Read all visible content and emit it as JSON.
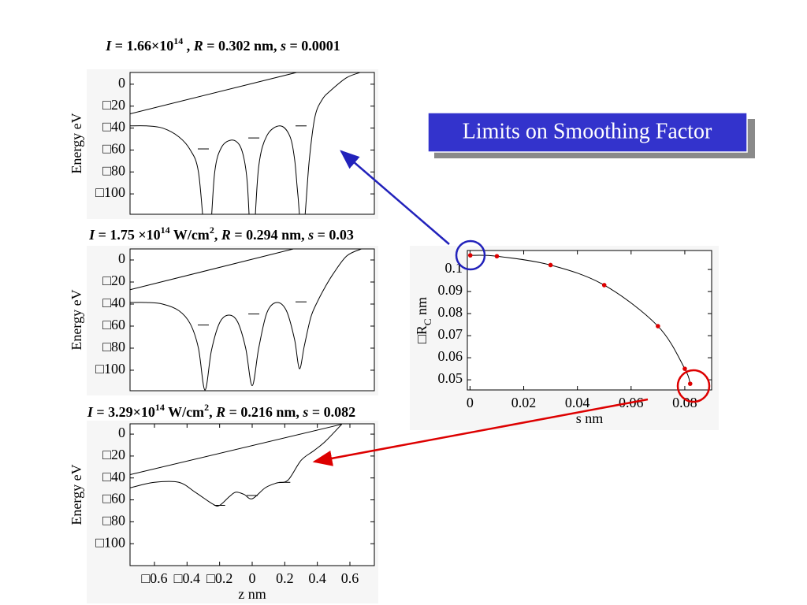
{
  "callout": "Limits on Smoothing Factor",
  "chart_data": [
    {
      "type": "line",
      "title": [
        {
          "text": "I",
          "italic": true
        },
        {
          "text": " = 1.66×10"
        },
        {
          "text": "14",
          "sup": true
        },
        {
          "text": " , "
        },
        {
          "text": "R",
          "italic": true
        },
        {
          "text": " = 0.302 nm, "
        },
        {
          "text": "s",
          "italic": true
        },
        {
          "text": " = 0.0001"
        }
      ],
      "ylabel": "Energy  eV",
      "xlim": [
        -0.75,
        0.75
      ],
      "ylim": [
        -118.6,
        10.7
      ],
      "yticks": [
        0,
        {
          "value": -20,
          "label": "□20"
        },
        {
          "value": -40,
          "label": "□40"
        },
        {
          "value": -60,
          "label": "□60"
        },
        {
          "value": -80,
          "label": "□80"
        },
        {
          "value": -100,
          "label": "□100"
        }
      ],
      "series": [
        {
          "color": "#000000",
          "x": [
            -0.75,
            0.28
          ],
          "values": [
            -27,
            11
          ]
        },
        {
          "color": "#000000",
          "x": [
            -0.75,
            -0.65,
            -0.55,
            -0.45,
            -0.38,
            -0.33,
            -0.29,
            -0.26,
            -0.23,
            -0.19,
            -0.13,
            -0.08,
            -0.05,
            -0.03,
            -0.01,
            0.01,
            0.04,
            0.09,
            0.17,
            0.23,
            0.26,
            0.28,
            0.31,
            0.35,
            0.385,
            0.43,
            0.48,
            0.58,
            0.67
          ],
          "values": [
            -38,
            -38,
            -40,
            -48,
            -60,
            -80,
            -140,
            -140,
            -80,
            -58,
            -51,
            -55,
            -68,
            -90,
            -140,
            -140,
            -75,
            -47,
            -38,
            -47,
            -68,
            -100,
            -140,
            -70,
            -30,
            -14,
            -6,
            6,
            11
          ]
        }
      ],
      "levels": {
        "x": [
          -0.3,
          0.01,
          0.3
        ],
        "values": [
          -59,
          -49,
          -38
        ]
      }
    },
    {
      "type": "line",
      "title": [
        {
          "text": "I",
          "italic": true
        },
        {
          "text": " = 1.75 ×10"
        },
        {
          "text": "14",
          "sup": true
        },
        {
          "text": " W/cm"
        },
        {
          "text": "2",
          "sup": true
        },
        {
          "text": ",  "
        },
        {
          "text": "R",
          "italic": true
        },
        {
          "text": " = 0.294 nm, "
        },
        {
          "text": "s",
          "italic": true
        },
        {
          "text": " = 0.03"
        }
      ],
      "ylabel": "Energy  eV",
      "xlim": [
        -0.75,
        0.75
      ],
      "ylim": [
        -118.6,
        10
      ],
      "yticks": [
        0,
        {
          "value": -20,
          "label": "□20"
        },
        {
          "value": -40,
          "label": "□40"
        },
        {
          "value": -60,
          "label": "□60"
        },
        {
          "value": -80,
          "label": "□80"
        },
        {
          "value": -100,
          "label": "□100"
        }
      ],
      "series": [
        {
          "color": "#000000",
          "x": [
            -0.75,
            0.28
          ],
          "values": [
            -27,
            11
          ]
        },
        {
          "color": "#000000",
          "x": [
            -0.75,
            -0.65,
            -0.55,
            -0.45,
            -0.38,
            -0.33,
            -0.29,
            -0.25,
            -0.2,
            -0.145,
            -0.09,
            -0.04,
            0,
            0.04,
            0.09,
            0.15,
            0.21,
            0.26,
            0.29,
            0.32,
            0.36,
            0.4,
            0.45,
            0.5,
            0.58,
            0.67
          ],
          "values": [
            -38.6,
            -38.6,
            -40,
            -46,
            -58,
            -80,
            -118,
            -82,
            -57,
            -50,
            -56,
            -80,
            -114,
            -80,
            -48,
            -38.6,
            -46,
            -72,
            -98.6,
            -78,
            -52,
            -38,
            -24,
            -12,
            3.6,
            10
          ]
        }
      ],
      "levels": {
        "x": [
          -0.3,
          0.01,
          0.3
        ],
        "values": [
          -59,
          -49,
          -38
        ]
      }
    },
    {
      "type": "line",
      "title": [
        {
          "text": "I",
          "italic": true
        },
        {
          "text": " = 3.29×10"
        },
        {
          "text": "14",
          "sup": true
        },
        {
          "text": " W/cm"
        },
        {
          "text": "2",
          "sup": true
        },
        {
          "text": ", "
        },
        {
          "text": "R",
          "italic": true
        },
        {
          "text": " = 0.216 nm, "
        },
        {
          "text": "s",
          "italic": true
        },
        {
          "text": " = 0.082"
        }
      ],
      "ylabel": "Energy  eV",
      "xlabel": "z  nm",
      "xlim": [
        -0.75,
        0.75
      ],
      "ylim": [
        -120,
        9.4
      ],
      "xticks": [
        {
          "value": -0.6,
          "label": "□0.6"
        },
        {
          "value": -0.4,
          "label": "□0.4"
        },
        {
          "value": -0.2,
          "label": "□0.2"
        },
        0,
        0.2,
        0.4,
        0.6
      ],
      "yticks": [
        0,
        {
          "value": -20,
          "label": "□20"
        },
        {
          "value": -40,
          "label": "□40"
        },
        {
          "value": -60,
          "label": "□60"
        },
        {
          "value": -80,
          "label": "□80"
        },
        {
          "value": -100,
          "label": "□100"
        }
      ],
      "series": [
        {
          "color": "#000000",
          "x": [
            -0.75,
            0.55
          ],
          "values": [
            -37,
            9
          ]
        },
        {
          "color": "#000000",
          "x": [
            -0.75,
            -0.6,
            -0.45,
            -0.35,
            -0.24,
            -0.2,
            -0.14,
            -0.1,
            -0.05,
            0,
            0.08,
            0.15,
            0.22,
            0.3,
            0.38,
            0.45,
            0.55
          ],
          "values": [
            -49,
            -44,
            -44,
            -53,
            -64,
            -65,
            -57,
            -53,
            -55,
            -59,
            -49,
            -44.6,
            -42,
            -24,
            -15,
            -6.5,
            9
          ]
        }
      ],
      "levels": {
        "x": [
          -0.2,
          0,
          0.2
        ],
        "values": [
          -65,
          -56,
          -44
        ]
      }
    },
    {
      "type": "scatter",
      "xlabel": "s  nm",
      "ylabel": {
        "main": "□R",
        "sub": "C",
        "unit": "  nm"
      },
      "xlim": [
        -0.001,
        0.09
      ],
      "ylim": [
        0.0454,
        0.1086
      ],
      "xticks": [
        0,
        0.02,
        0.04,
        0.06,
        0.08
      ],
      "yticks": [
        0.05,
        0.06,
        0.07,
        0.08,
        0.09,
        0.1
      ],
      "color": "#dd0000",
      "line_color": "#000000",
      "x": [
        0.0001,
        0.01,
        0.03,
        0.05,
        0.07,
        0.08,
        0.082
      ],
      "values": [
        0.1064,
        0.106,
        0.102,
        0.0929,
        0.0743,
        0.055,
        0.0482
      ]
    }
  ]
}
